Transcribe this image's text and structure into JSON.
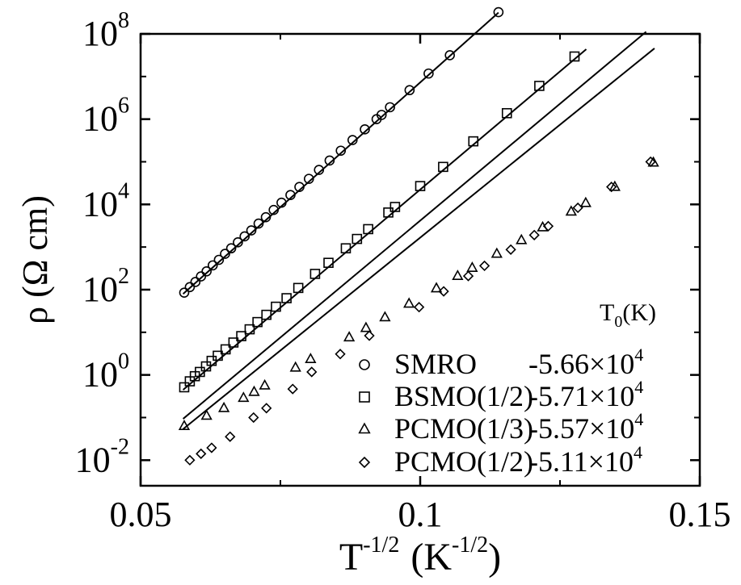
{
  "chart_data": {
    "type": "scatter",
    "title": "",
    "xlabel": {
      "base": "T",
      "sup": "-1/2",
      "unit_base": "(K",
      "unit_sup": "-1/2",
      "close": ")"
    },
    "ylabel": "ρ (Ω cm)",
    "xlim": [
      0.05,
      0.15
    ],
    "ylim": [
      -2.6,
      8.0
    ],
    "y_scale": "log10",
    "x_ticks": [
      {
        "value": 0.05,
        "label": "0.05"
      },
      {
        "value": 0.1,
        "label": "0.1"
      },
      {
        "value": 0.15,
        "label": "0.15"
      }
    ],
    "y_ticks": [
      {
        "exp": -2,
        "base": "10",
        "sup": "-2"
      },
      {
        "exp": 0,
        "base": "10",
        "sup": "0"
      },
      {
        "exp": 2,
        "base": "10",
        "sup": "2"
      },
      {
        "exp": 4,
        "base": "10",
        "sup": "4"
      },
      {
        "exp": 6,
        "base": "10",
        "sup": "6"
      },
      {
        "exp": 8,
        "base": "10",
        "sup": "8"
      }
    ],
    "legend": {
      "placement": "bottom-right",
      "header": {
        "base": "T",
        "sub": "0",
        "rest": "(K)"
      },
      "entries": [
        {
          "name": "SMRO",
          "marker": "circle",
          "t0_coef": "-5.66×10",
          "t0_exp": "4"
        },
        {
          "name": "BSMO(1/2)",
          "marker": "square",
          "t0_coef": "-5.71×10",
          "t0_exp": "4"
        },
        {
          "name": "PCMO(1/3)",
          "marker": "triangle",
          "t0_coef": "-5.57×10",
          "t0_exp": "4"
        },
        {
          "name": "PCMO(1/2)",
          "marker": "diamond",
          "t0_coef": "-5.11×10",
          "t0_exp": "4"
        }
      ]
    },
    "series": [
      {
        "name": "SMRO",
        "marker": "circle",
        "x": [
          0.0578,
          0.0588,
          0.0598,
          0.0608,
          0.0618,
          0.0629,
          0.064,
          0.0651,
          0.0662,
          0.0674,
          0.0686,
          0.0698,
          0.0711,
          0.0724,
          0.0738,
          0.0752,
          0.0768,
          0.0784,
          0.0801,
          0.0819,
          0.0838,
          0.0858,
          0.0879,
          0.0901,
          0.0922,
          0.0931,
          0.0946,
          0.0981,
          0.1015,
          0.1053,
          0.114
        ],
        "y_log10": [
          1.93,
          2.06,
          2.18,
          2.31,
          2.43,
          2.57,
          2.7,
          2.84,
          2.97,
          3.11,
          3.25,
          3.39,
          3.55,
          3.7,
          3.87,
          4.04,
          4.22,
          4.41,
          4.6,
          4.81,
          5.03,
          5.26,
          5.51,
          5.76,
          6.0,
          6.1,
          6.28,
          6.68,
          7.07,
          7.5,
          8.51
        ]
      },
      {
        "name": "BSMO(1/2)",
        "marker": "square",
        "x": [
          0.0578,
          0.0588,
          0.0597,
          0.0606,
          0.0617,
          0.0627,
          0.0638,
          0.0652,
          0.0666,
          0.068,
          0.0695,
          0.0709,
          0.0725,
          0.0742,
          0.0761,
          0.0782,
          0.0812,
          0.0836,
          0.0867,
          0.0887,
          0.0907,
          0.0943,
          0.0955,
          0.1,
          0.1041,
          0.1095,
          0.1155,
          0.1213,
          0.1276
        ],
        "y_log10": [
          -0.29,
          -0.15,
          -0.03,
          0.07,
          0.2,
          0.33,
          0.45,
          0.6,
          0.76,
          0.91,
          1.07,
          1.24,
          1.41,
          1.6,
          1.8,
          2.04,
          2.37,
          2.63,
          2.97,
          3.19,
          3.42,
          3.81,
          3.94,
          4.43,
          4.88,
          5.48,
          6.14,
          6.78,
          7.47
        ]
      },
      {
        "name": "PCMO(1/3)",
        "marker": "triangle",
        "x": [
          0.0578,
          0.0618,
          0.0649,
          0.0684,
          0.0703,
          0.0722,
          0.0777,
          0.0804,
          0.0873,
          0.0903,
          0.0937,
          0.098,
          0.1029,
          0.1067,
          0.1093,
          0.1137,
          0.1181,
          0.1219,
          0.127,
          0.1296,
          0.1348,
          0.1417
        ],
        "y_log10": [
          -1.2,
          -0.96,
          -0.78,
          -0.54,
          -0.4,
          -0.25,
          0.17,
          0.37,
          0.88,
          1.1,
          1.35,
          1.67,
          2.03,
          2.32,
          2.51,
          2.84,
          3.16,
          3.46,
          3.83,
          4.03,
          4.41,
          4.98
        ]
      },
      {
        "name": "PCMO(1/2)",
        "marker": "diamond",
        "x": [
          0.0588,
          0.0608,
          0.0627,
          0.066,
          0.0702,
          0.0725,
          0.0772,
          0.0806,
          0.0857,
          0.0909,
          0.0998,
          0.1042,
          0.1086,
          0.1115,
          0.1162,
          0.1204,
          0.1229,
          0.1282,
          0.1342,
          0.1412
        ],
        "y_log10": [
          -2.0,
          -1.85,
          -1.71,
          -1.45,
          -1.0,
          -0.78,
          -0.33,
          0.07,
          0.49,
          0.92,
          1.59,
          1.96,
          2.32,
          2.56,
          2.94,
          3.28,
          3.49,
          3.92,
          4.41,
          5.0
        ]
      }
    ],
    "fit_lines": [
      {
        "series": "SMRO",
        "x": [
          0.0576,
          0.114
        ],
        "y_log10": [
          1.9,
          8.5
        ]
      },
      {
        "series": "BSMO(1/2)",
        "x": [
          0.0576,
          0.1297
        ],
        "y_log10": [
          -0.35,
          7.64
        ]
      },
      {
        "series": "PCMO(1/3)",
        "x": [
          0.0576,
          0.1404
        ],
        "y_log10": [
          -1.03,
          8.05
        ]
      },
      {
        "series": "PCMO(1/2)",
        "x": [
          0.0576,
          0.1419
        ],
        "y_log10": [
          -1.27,
          7.66
        ]
      }
    ]
  }
}
